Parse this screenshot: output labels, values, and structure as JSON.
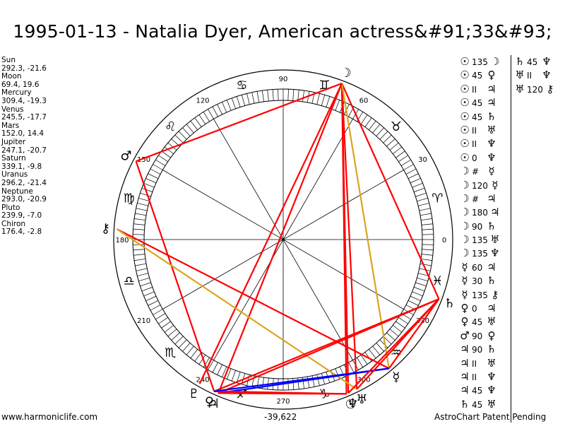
{
  "title": "1995-01-13 - Natalia Dyer, American actress&#91;33&#93;",
  "planets": [
    {
      "name": "Sun",
      "coords": "292.3, -21.6",
      "lon": 292.3,
      "glyph": "☉"
    },
    {
      "name": "Moon",
      "coords": "69.4, 19.6",
      "lon": 69.4,
      "glyph": "☽"
    },
    {
      "name": "Mercury",
      "coords": "309.4, -19.3",
      "lon": 309.4,
      "glyph": "☿"
    },
    {
      "name": "Venus",
      "coords": "245.5, -17.7",
      "lon": 245.5,
      "glyph": "♀"
    },
    {
      "name": "Mars",
      "coords": "152.0, 14.4",
      "lon": 152.0,
      "glyph": "♂"
    },
    {
      "name": "Jupiter",
      "coords": "247.1, -20.7",
      "lon": 247.1,
      "glyph": "♃"
    },
    {
      "name": "Saturn",
      "coords": "339.1, -9.8",
      "lon": 339.1,
      "glyph": "♄"
    },
    {
      "name": "Uranus",
      "coords": "296.2, -21.4",
      "lon": 296.2,
      "glyph": "♅"
    },
    {
      "name": "Neptune",
      "coords": "293.0, -20.9",
      "lon": 293.0,
      "glyph": "♆"
    },
    {
      "name": "Pluto",
      "coords": "239.9, -7.0",
      "lon": 239.9,
      "glyph": "♇"
    },
    {
      "name": "Chiron",
      "coords": "176.4, -2.8",
      "lon": 176.4,
      "glyph": "⚷"
    }
  ],
  "degree_labels": [
    "0",
    "30",
    "60",
    "90",
    "120",
    "150",
    "180",
    "210",
    "240",
    "270",
    "300",
    "330"
  ],
  "zodiac_glyphs": [
    "♈",
    "♉",
    "♊",
    "♋",
    "♌",
    "♍",
    "♎",
    "♏",
    "♐",
    "♑",
    "♒",
    "♓"
  ],
  "aspects_col1": [
    {
      "p1": "☉",
      "aspect": "135",
      "p2": "☽"
    },
    {
      "p1": "☉",
      "aspect": "45",
      "p2": "♀"
    },
    {
      "p1": "☉",
      "aspect": "II",
      "p2": "♃"
    },
    {
      "p1": "☉",
      "aspect": "45",
      "p2": "♃"
    },
    {
      "p1": "☉",
      "aspect": "45",
      "p2": "♄"
    },
    {
      "p1": "☉",
      "aspect": "II",
      "p2": "♅"
    },
    {
      "p1": "☉",
      "aspect": "II",
      "p2": "♆"
    },
    {
      "p1": "☉",
      "aspect": "0",
      "p2": "♆"
    },
    {
      "p1": "☽",
      "aspect": "#",
      "p2": "☿"
    },
    {
      "p1": "☽",
      "aspect": "120",
      "p2": "☿"
    },
    {
      "p1": "☽",
      "aspect": "#",
      "p2": "♃"
    },
    {
      "p1": "☽",
      "aspect": "180",
      "p2": "♃"
    },
    {
      "p1": "☽",
      "aspect": "90",
      "p2": "♄"
    },
    {
      "p1": "☽",
      "aspect": "135",
      "p2": "♅"
    },
    {
      "p1": "☽",
      "aspect": "135",
      "p2": "♆"
    },
    {
      "p1": "☿",
      "aspect": "60",
      "p2": "♃"
    },
    {
      "p1": "☿",
      "aspect": "30",
      "p2": "♄"
    },
    {
      "p1": "☿",
      "aspect": "135",
      "p2": "⚷"
    },
    {
      "p1": "♀",
      "aspect": "0",
      "p2": "♃"
    },
    {
      "p1": "♀",
      "aspect": "45",
      "p2": "♅"
    },
    {
      "p1": "♂",
      "aspect": "90",
      "p2": "♀"
    },
    {
      "p1": "♃",
      "aspect": "90",
      "p2": "♄"
    },
    {
      "p1": "♃",
      "aspect": "II",
      "p2": "♅"
    },
    {
      "p1": "♃",
      "aspect": "II",
      "p2": "♆"
    },
    {
      "p1": "♃",
      "aspect": "45",
      "p2": "♆"
    },
    {
      "p1": "♄",
      "aspect": "45",
      "p2": "♅"
    }
  ],
  "aspects_col2": [
    {
      "p1": "♄",
      "aspect": "45",
      "p2": "♆"
    },
    {
      "p1": "♅",
      "aspect": "II",
      "p2": "♆"
    },
    {
      "p1": "♅",
      "aspect": "120",
      "p2": "⚷"
    }
  ],
  "aspect_lines": [
    {
      "from": "Moon",
      "to": "Mars",
      "color": "#ff0000"
    },
    {
      "from": "Moon",
      "to": "Pluto",
      "color": "#ff0000"
    },
    {
      "from": "Moon",
      "to": "Sun",
      "color": "#ff0000"
    },
    {
      "from": "Moon",
      "to": "Uranus",
      "color": "#ff0000"
    },
    {
      "from": "Moon",
      "to": "Neptune",
      "color": "#ff0000"
    },
    {
      "from": "Moon",
      "to": "Saturn",
      "color": "#ff0000"
    },
    {
      "from": "Moon",
      "to": "Mercury",
      "color": "#daa520"
    },
    {
      "from": "Moon",
      "to": "Jupiter",
      "color": "#ff0000"
    },
    {
      "from": "Mars",
      "to": "Venus",
      "color": "#ff0000"
    },
    {
      "from": "Chiron",
      "to": "Mercury",
      "color": "#ff0000"
    },
    {
      "from": "Chiron",
      "to": "Uranus",
      "color": "#daa520"
    },
    {
      "from": "Jupiter",
      "to": "Mercury",
      "color": "#0000ff"
    },
    {
      "from": "Jupiter",
      "to": "Saturn",
      "color": "#ff0000"
    },
    {
      "from": "Jupiter",
      "to": "Sun",
      "color": "#ff0000"
    },
    {
      "from": "Venus",
      "to": "Saturn",
      "color": "#ff0000"
    },
    {
      "from": "Venus",
      "to": "Sun",
      "color": "#ff0000"
    },
    {
      "from": "Venus",
      "to": "Mercury",
      "color": "#0000ff"
    },
    {
      "from": "Saturn",
      "to": "Neptune",
      "color": "#ff0000"
    },
    {
      "from": "Saturn",
      "to": "Uranus",
      "color": "#ff0000"
    },
    {
      "from": "Mercury",
      "to": "Saturn",
      "color": "#ff0000"
    }
  ],
  "footer": {
    "site": "www.harmoniclife.com",
    "code": "-39,622",
    "patent": "AstroChart Patent Pending"
  }
}
